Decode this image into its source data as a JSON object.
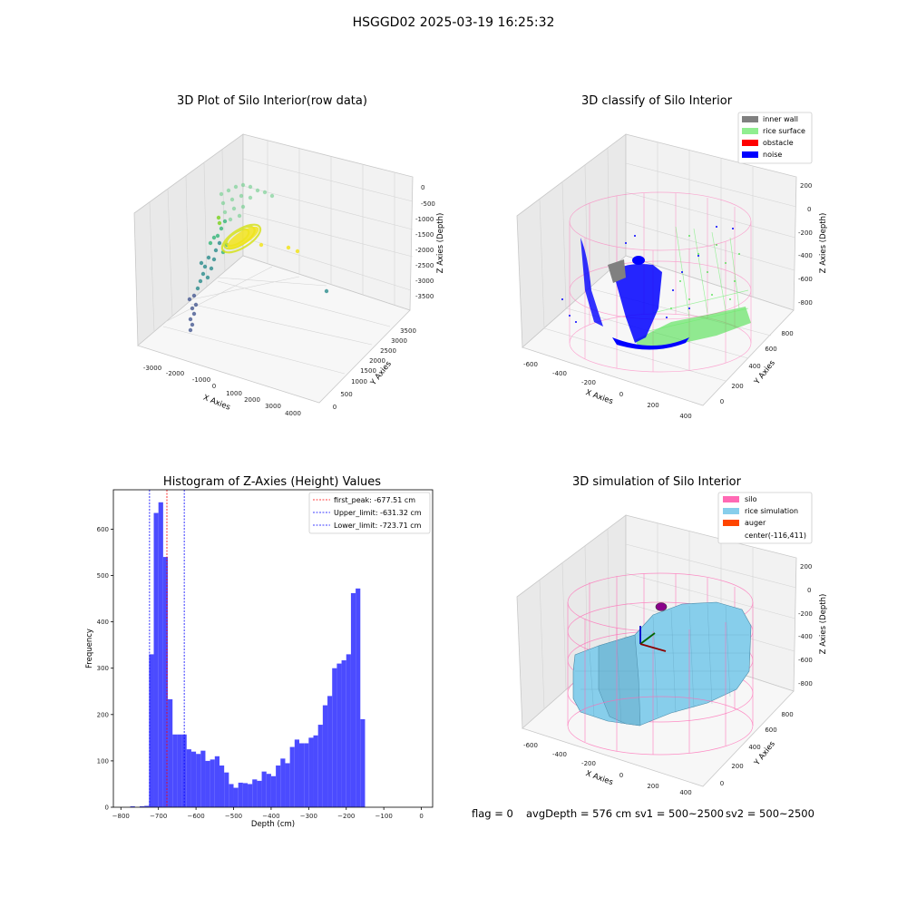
{
  "suptitle": "HSGGD02 2025-03-19 16:25:32",
  "plots": {
    "raw": {
      "title": "3D Plot of Silo Interior(row data)",
      "xlabel": "X Axies",
      "ylabel": "Y Axies",
      "zlabel": "Z Axies (Depth)",
      "xticks": [
        "-3000",
        "-2000",
        "-1000",
        "0",
        "1000",
        "2000",
        "3000",
        "4000"
      ],
      "yticks": [
        "0",
        "500",
        "1000",
        "1500",
        "2000",
        "2500",
        "3000",
        "3500"
      ],
      "zticks": [
        "0",
        "-500",
        "-1000",
        "-1500",
        "-2000",
        "-2500",
        "-3000",
        "-3500"
      ]
    },
    "classify": {
      "title": "3D classify of Silo Interior",
      "xlabel": "X Axies",
      "ylabel": "Y Axies",
      "zlabel": "Z Axies (Depth)",
      "xticks": [
        "-600",
        "-400",
        "-200",
        "0",
        "200",
        "400"
      ],
      "yticks": [
        "0",
        "200",
        "400",
        "600",
        "800"
      ],
      "zticks": [
        "200",
        "0",
        "-200",
        "-400",
        "-600",
        "-800"
      ],
      "legend": [
        {
          "label": "inner wall",
          "color": "#808080"
        },
        {
          "label": "rice surface",
          "color": "#90ee90"
        },
        {
          "label": "obstacle",
          "color": "#ff0000"
        },
        {
          "label": "noise",
          "color": "#0000ff"
        }
      ]
    },
    "simulation": {
      "title": "3D simulation of Silo Interior",
      "xlabel": "X Axies",
      "ylabel": "Y Axies",
      "zlabel": "Z Axies (Depth)",
      "xticks": [
        "-600",
        "-400",
        "-200",
        "0",
        "200",
        "400"
      ],
      "yticks": [
        "0",
        "200",
        "400",
        "600",
        "800"
      ],
      "zticks": [
        "200",
        "0",
        "-200",
        "-400",
        "-600",
        "-800"
      ],
      "legend": [
        {
          "label": "silo",
          "color": "#ff69b4"
        },
        {
          "label": "rice simulation",
          "color": "#87ceeb"
        },
        {
          "label": "auger",
          "color": "#ff4500"
        },
        {
          "label": "center(-116,411)",
          "color": ""
        }
      ]
    }
  },
  "chart_data": {
    "type": "bar",
    "title": "Histogram of Z-Axies (Height) Values",
    "xlabel": "Depth (cm)",
    "ylabel": "Frequency",
    "xlim": [
      -820,
      30
    ],
    "ylim": [
      0,
      685
    ],
    "xticks": [
      -800,
      -700,
      -600,
      -500,
      -400,
      -300,
      -200,
      -100,
      0
    ],
    "yticks": [
      0,
      100,
      200,
      300,
      400,
      500,
      600
    ],
    "bin_edges_start": -775,
    "bin_width": 12.5,
    "values": [
      2,
      0,
      2,
      3,
      330,
      635,
      658,
      540,
      233,
      157,
      157,
      157,
      125,
      120,
      115,
      122,
      100,
      103,
      110,
      90,
      75,
      50,
      42,
      53,
      52,
      50,
      60,
      57,
      77,
      72,
      67,
      90,
      105,
      95,
      130,
      146,
      138,
      138,
      150,
      155,
      178,
      220,
      240,
      300,
      310,
      317,
      330,
      462,
      472,
      190
    ],
    "bar_color": "#4b4bff",
    "lines": [
      {
        "label": "first_peak: -677.51 cm",
        "x": -677.51,
        "color": "#ff0000"
      },
      {
        "label": "Upper_limit: -631.32 cm",
        "x": -631.32,
        "color": "#0000ff"
      },
      {
        "label": "Lower_limit: -723.71 cm",
        "x": -723.71,
        "color": "#0000ff"
      }
    ],
    "legend_position": "top-right"
  },
  "footer": {
    "flag": "flag = 0",
    "avg": "avgDepth = 576 cm",
    "sv1": "sv1 = 500~2500",
    "sv2": "sv2 = 500~2500"
  }
}
